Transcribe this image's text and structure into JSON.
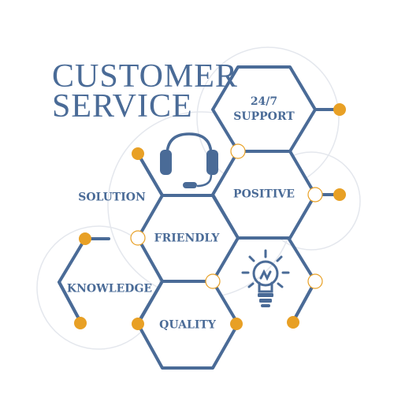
{
  "title": {
    "line1": "CUSTOMER",
    "line2": "SERVICE"
  },
  "hexagons": [
    {
      "id": "support",
      "label": "24/7\nSUPPORT"
    },
    {
      "id": "positive",
      "label": "POSITIVE"
    },
    {
      "id": "friendly",
      "label": "FRIENDLY"
    },
    {
      "id": "quality",
      "label": "QUALITY"
    }
  ],
  "side_labels": {
    "solution": "SOLUTION",
    "knowledge": "KNOWLEDGE"
  },
  "icons": [
    "headset-icon",
    "lightbulb-icon"
  ],
  "colors": {
    "primary": "#4a6b97",
    "accent": "#e8a025",
    "ring": "#e4e7ed"
  }
}
